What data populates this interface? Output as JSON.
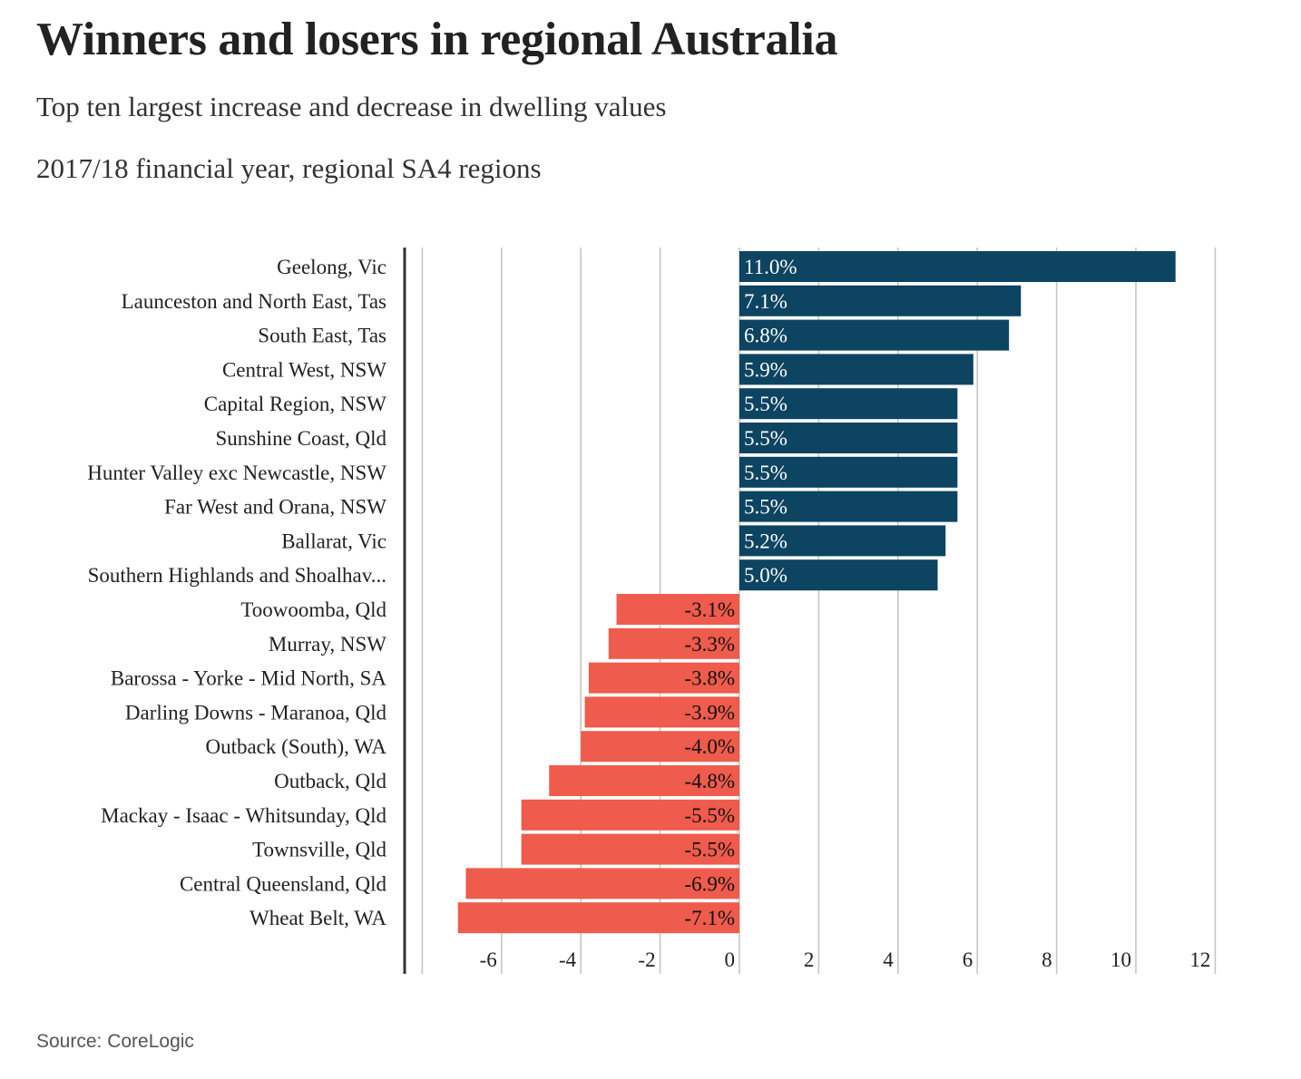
{
  "header": {
    "title": "Winners and losers in regional Australia",
    "subtitle": "Top ten largest increase and decrease in dwelling values",
    "subtitle2": "2017/18 financial year, regional SA4 regions"
  },
  "footer": {
    "source": "Source: CoreLogic"
  },
  "colors": {
    "positive": "#0d4461",
    "negative": "#ef5b4c",
    "grid": "#c8c6bf",
    "axis": "#333333"
  },
  "chart_data": {
    "type": "bar",
    "orientation": "horizontal",
    "title": "Winners and losers in regional Australia",
    "subtitle": "Top ten largest increase and decrease in dwelling values",
    "xlim": [
      -8,
      12
    ],
    "xticks": [
      -6,
      -4,
      -2,
      0,
      2,
      4,
      6,
      8,
      10,
      12
    ],
    "grid": true,
    "categories": [
      "Geelong, Vic",
      "Launceston and North East, Tas",
      "South East, Tas",
      "Central West, NSW",
      "Capital Region, NSW",
      "Sunshine Coast, Qld",
      "Hunter Valley exc Newcastle, NSW",
      "Far West and Orana, NSW",
      "Ballarat, Vic",
      "Southern Highlands and Shoalhav...",
      "Toowoomba, Qld",
      "Murray, NSW",
      "Barossa - Yorke - Mid North, SA",
      "Darling Downs - Maranoa, Qld",
      "Outback (South), WA",
      "Outback, Qld",
      "Mackay - Isaac - Whitsunday, Qld",
      "Townsville, Qld",
      "Central Queensland, Qld",
      "Wheat Belt, WA"
    ],
    "values": [
      11.0,
      7.1,
      6.8,
      5.9,
      5.5,
      5.5,
      5.5,
      5.5,
      5.2,
      5.0,
      -3.1,
      -3.3,
      -3.8,
      -3.9,
      -4.0,
      -4.8,
      -5.5,
      -5.5,
      -6.9,
      -7.1
    ],
    "value_labels": [
      "11.0%",
      "7.1%",
      "6.8%",
      "5.9%",
      "5.5%",
      "5.5%",
      "5.5%",
      "5.5%",
      "5.2%",
      "5.0%",
      "-3.1%",
      "-3.3%",
      "-3.8%",
      "-3.9%",
      "-4.0%",
      "-4.8%",
      "-5.5%",
      "-5.5%",
      "-6.9%",
      "-7.1%"
    ]
  }
}
